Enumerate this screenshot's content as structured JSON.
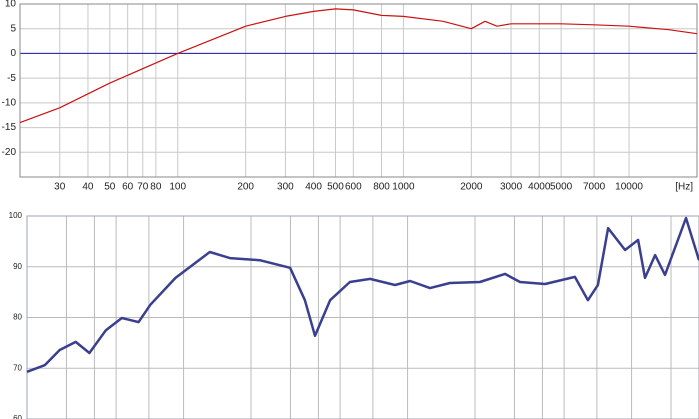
{
  "chart_data": [
    {
      "type": "line",
      "x_label": "[Hz]",
      "log_x": true,
      "grid": true,
      "zero_line_color": "#1a1aa0",
      "xlim": [
        20,
        20000
      ],
      "ylim": [
        -25,
        10
      ],
      "xticks": [
        30,
        40,
        50,
        60,
        70,
        80,
        100,
        200,
        300,
        400,
        500,
        600,
        800,
        1000,
        2000,
        3000,
        4000,
        5000,
        7000,
        10000
      ],
      "yticks": [
        10,
        5,
        0,
        -5,
        -10,
        -15,
        -20
      ],
      "series": [
        {
          "color": "#cc1111",
          "x": [
            20,
            30,
            50,
            100,
            200,
            300,
            400,
            500,
            600,
            800,
            1000,
            1500,
            2000,
            2300,
            2600,
            3000,
            5000,
            7000,
            10000,
            15000,
            20000
          ],
          "values": [
            -14,
            -11,
            -6,
            0,
            5.5,
            7.5,
            8.5,
            9,
            8.8,
            7.7,
            7.5,
            6.5,
            5,
            6.5,
            5.5,
            6,
            6,
            5.8,
            5.5,
            4.8,
            4
          ]
        }
      ]
    },
    {
      "type": "line",
      "log_x": true,
      "grid": true,
      "xlim": [
        20,
        20000
      ],
      "ylim": [
        60,
        100
      ],
      "xticks": [
        {
          "value": 30,
          "label": null
        },
        {
          "value": 40,
          "label": null
        },
        {
          "value": 50,
          "label": null
        },
        {
          "value": 70,
          "label": null
        },
        {
          "value": 100,
          "label": null
        },
        {
          "value": 200,
          "label": null
        },
        {
          "value": 300,
          "label": null
        },
        {
          "value": 400,
          "label": null
        },
        {
          "value": 500,
          "label": null
        },
        {
          "value": 700,
          "label": null
        },
        {
          "value": 1000,
          "label": null
        },
        {
          "value": 2000,
          "label": null
        },
        {
          "value": 3000,
          "label": null
        },
        {
          "value": 4000,
          "label": null
        },
        {
          "value": 5000,
          "label": null
        },
        {
          "value": 7000,
          "label": null
        },
        {
          "value": 10000,
          "label": null
        },
        {
          "value": 15000,
          "label": null
        }
      ],
      "yticks": [
        100,
        90,
        80,
        70,
        60
      ],
      "series": [
        {
          "color": "#3a3f8f",
          "x": [
            20,
            24,
            28,
            33,
            38,
            45,
            53,
            63,
            71,
            92,
            131,
            161,
            219,
            299,
            348,
            386,
            451,
            553,
            680,
            879,
            1026,
            1259,
            1545,
            2104,
            2723,
            3177,
            4112,
            5586,
            6382,
            7078,
            7853,
            9355,
            10691,
            11480,
            12737,
            14100,
            17500,
            20000
          ],
          "values": [
            69.3,
            70.6,
            73.6,
            75.2,
            73,
            77.5,
            79.9,
            79.1,
            82.5,
            87.8,
            92.9,
            91.7,
            91.3,
            89.8,
            83.4,
            76.4,
            83.4,
            87,
            87.6,
            86.4,
            87.2,
            85.8,
            86.8,
            87,
            88.6,
            87,
            86.6,
            88,
            83.4,
            86.4,
            97.6,
            93.3,
            95.3,
            87.8,
            92.3,
            88.4,
            99.6,
            91.3
          ]
        }
      ]
    }
  ]
}
